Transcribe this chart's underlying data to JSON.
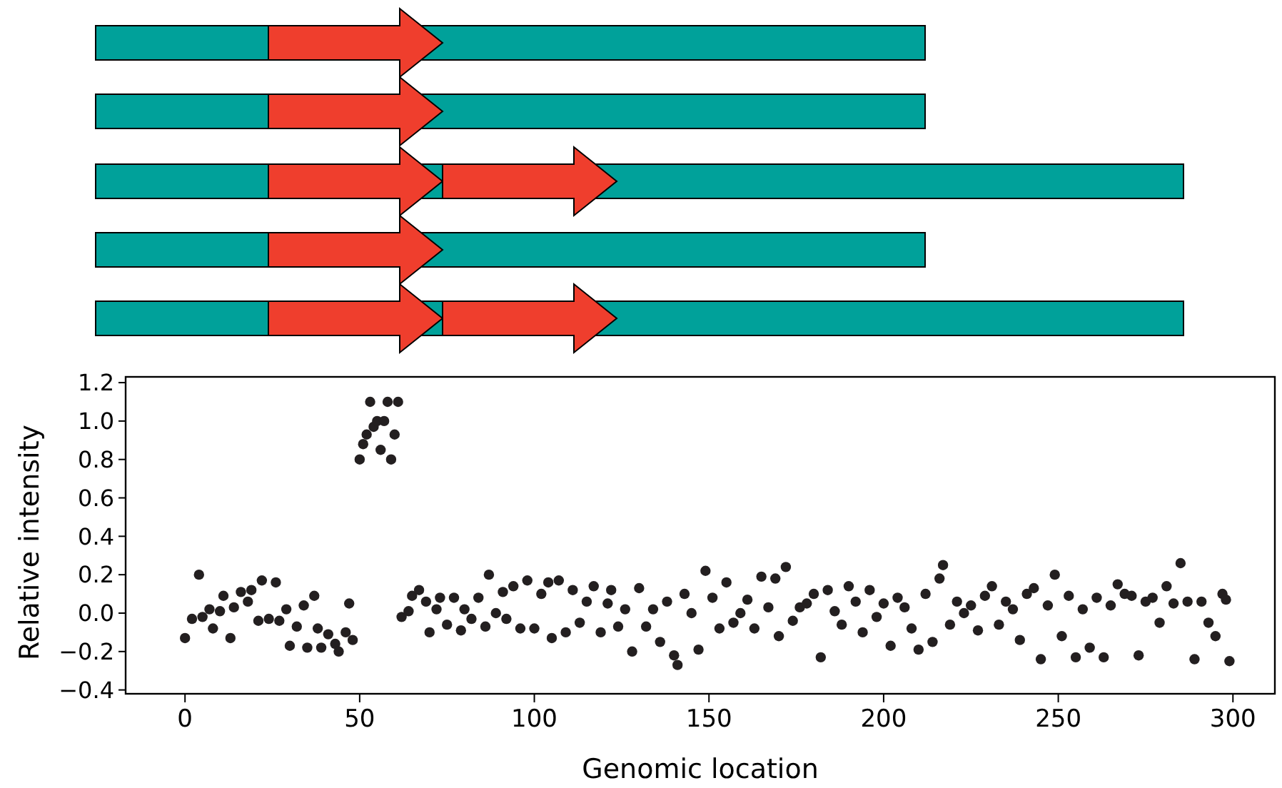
{
  "chart_data": {
    "type": "scatter",
    "xlabel": "Genomic location",
    "ylabel": "Relative intensity",
    "marker": "circle",
    "grid": false,
    "xlim": [
      -17,
      312
    ],
    "ylim": [
      -0.42,
      1.23
    ],
    "xticks": [
      0,
      50,
      100,
      150,
      200,
      250,
      300
    ],
    "yticks": [
      {
        "value": -0.4,
        "label": "−0.4"
      },
      {
        "value": -0.2,
        "label": "−0.2"
      },
      {
        "value": 0,
        "label": "0.0"
      },
      0.2,
      0.4,
      0.6,
      0.8,
      {
        "value": 1,
        "label": "1.0"
      },
      1.2
    ],
    "series": [
      {
        "color": "#231f20",
        "x": [
          0,
          2,
          4,
          5,
          7,
          8,
          10,
          11,
          13,
          14,
          16,
          18,
          19,
          21,
          22,
          24,
          26,
          27,
          29,
          30,
          32,
          34,
          35,
          37,
          38,
          39,
          41,
          43,
          44,
          46,
          47,
          48,
          50,
          51,
          52,
          53,
          54,
          55,
          56,
          57,
          58,
          59,
          60,
          61,
          62,
          64,
          65,
          67,
          69,
          70,
          72,
          73,
          75,
          77,
          79,
          80,
          82,
          84,
          86,
          87,
          89,
          91,
          92,
          94,
          96,
          98,
          100,
          102,
          104,
          105,
          107,
          109,
          111,
          113,
          115,
          117,
          119,
          121,
          122,
          124,
          126,
          128,
          130,
          132,
          134,
          136,
          138,
          140,
          141,
          143,
          145,
          147,
          149,
          151,
          153,
          155,
          157,
          159,
          161,
          163,
          165,
          167,
          169,
          170,
          172,
          174,
          176,
          178,
          180,
          182,
          184,
          186,
          188,
          190,
          192,
          194,
          196,
          198,
          200,
          202,
          204,
          206,
          208,
          210,
          212,
          214,
          216,
          217,
          219,
          221,
          223,
          225,
          227,
          229,
          231,
          233,
          235,
          237,
          239,
          241,
          243,
          245,
          247,
          249,
          251,
          253,
          255,
          257,
          259,
          261,
          263,
          265,
          267,
          269,
          271,
          273,
          275,
          277,
          279,
          281,
          283,
          285,
          287,
          289,
          291,
          293,
          295,
          297,
          298,
          299
        ],
        "values": [
          -0.13,
          -0.03,
          0.2,
          -0.02,
          0.02,
          -0.08,
          0.01,
          0.09,
          -0.13,
          0.03,
          0.11,
          0.06,
          0.12,
          -0.04,
          0.17,
          -0.03,
          0.16,
          -0.04,
          0.02,
          -0.17,
          -0.07,
          0.04,
          -0.18,
          0.09,
          -0.08,
          -0.18,
          -0.11,
          -0.16,
          -0.2,
          -0.1,
          0.05,
          -0.14,
          0.8,
          0.88,
          0.93,
          1.1,
          0.97,
          1.0,
          0.85,
          1.0,
          1.1,
          0.8,
          0.93,
          1.1,
          -0.02,
          0.01,
          0.09,
          0.12,
          0.06,
          -0.1,
          0.02,
          0.08,
          -0.06,
          0.08,
          -0.09,
          0.02,
          -0.03,
          0.08,
          -0.07,
          0.2,
          0.0,
          0.11,
          -0.03,
          0.14,
          -0.08,
          0.17,
          -0.08,
          0.1,
          0.16,
          -0.13,
          0.17,
          -0.1,
          0.12,
          -0.05,
          0.06,
          0.14,
          -0.1,
          0.05,
          0.12,
          -0.07,
          0.02,
          -0.2,
          0.13,
          -0.07,
          0.02,
          -0.15,
          0.06,
          -0.22,
          -0.27,
          0.1,
          0.0,
          -0.19,
          0.22,
          0.08,
          -0.08,
          0.16,
          -0.05,
          0.0,
          0.07,
          -0.08,
          0.19,
          0.03,
          0.18,
          -0.12,
          0.24,
          -0.04,
          0.03,
          0.05,
          0.1,
          -0.23,
          0.12,
          0.01,
          -0.06,
          0.14,
          0.06,
          -0.1,
          0.12,
          -0.02,
          0.05,
          -0.17,
          0.08,
          0.03,
          -0.08,
          -0.19,
          0.1,
          -0.15,
          0.18,
          0.25,
          -0.06,
          0.06,
          0.0,
          0.04,
          -0.09,
          0.09,
          0.14,
          -0.06,
          0.06,
          0.02,
          -0.14,
          0.1,
          0.13,
          -0.24,
          0.04,
          0.2,
          -0.12,
          0.09,
          -0.23,
          0.02,
          -0.18,
          0.08,
          -0.23,
          0.04,
          0.15,
          0.1,
          0.09,
          -0.22,
          0.06,
          0.08,
          -0.05,
          0.14,
          0.05,
          0.26,
          0.06,
          -0.24,
          0.06,
          -0.05,
          -0.12,
          0.1,
          0.07,
          -0.25
        ]
      }
    ]
  }
}
